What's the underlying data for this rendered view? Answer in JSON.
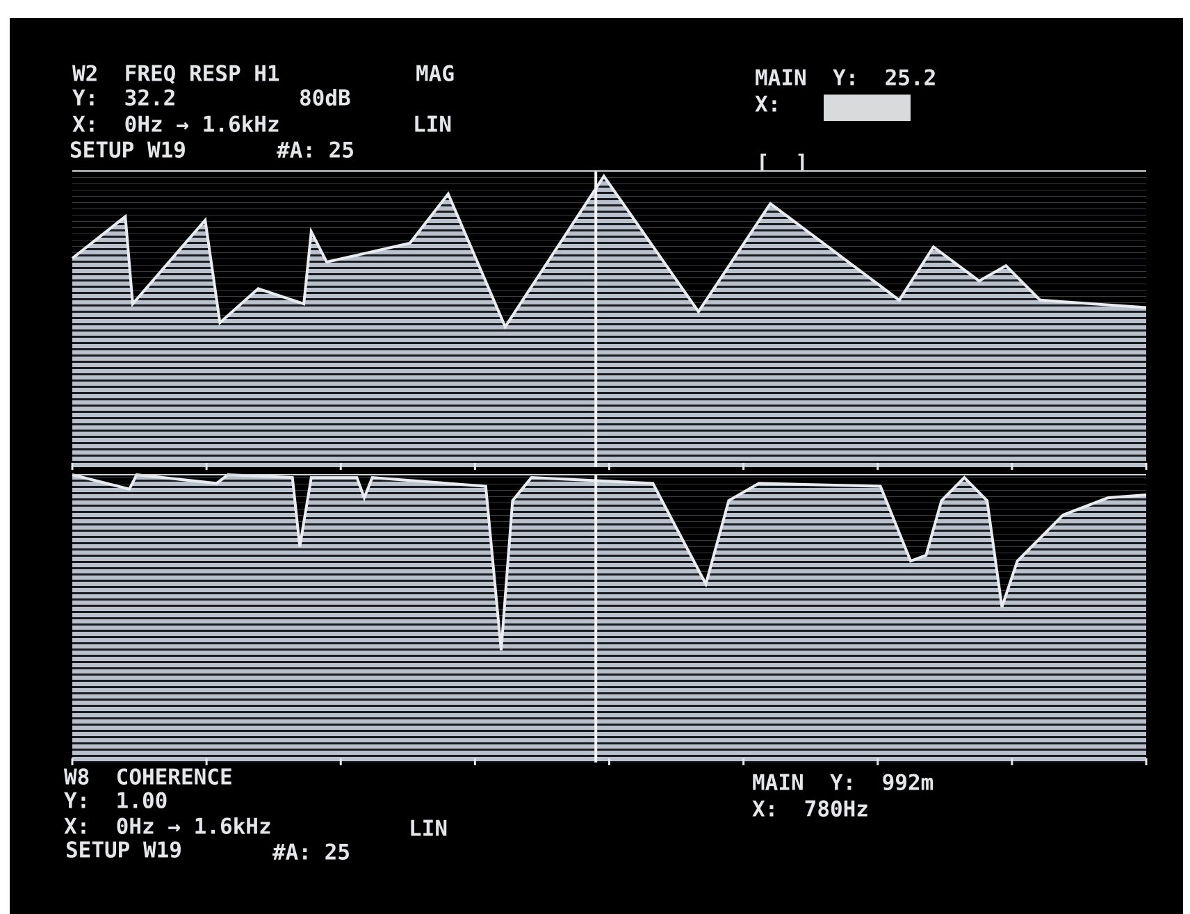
{
  "chart_data": [
    {
      "type": "area",
      "title": "W2  FREQ RESP H1",
      "mode": "MAG",
      "y_readout": "Y:  32.2",
      "y_scale": "80dB",
      "x_readout": "X:  0Hz → 1.6kHz",
      "x_scale": "LIN",
      "setup": "SETUP W19",
      "averages": "#A: 25",
      "marker_y": "MAIN  Y:  25.2",
      "marker_x": "X:",
      "marker_bracket": "[  ]",
      "cursor_x": 780,
      "xlim": [
        0,
        1600
      ],
      "ylim": [
        -47.8,
        32.2
      ],
      "xticks": [
        0,
        200,
        400,
        600,
        800,
        1000,
        1200,
        1400,
        1600
      ],
      "x": [
        0,
        79,
        90,
        198,
        220,
        277,
        345,
        356,
        379,
        503,
        560,
        645,
        792,
        933,
        1040,
        1232,
        1283,
        1351,
        1391,
        1442,
        1600
      ],
      "values": [
        8.6,
        19.9,
        -3.7,
        18.9,
        -8.8,
        0.4,
        -3.7,
        15.8,
        7.6,
        12.7,
        26.0,
        -9.9,
        30.8,
        -5.8,
        23.4,
        -2.7,
        11.7,
        2.5,
        6.6,
        -2.7,
        -4.7
      ],
      "color": "#e8ecf0"
    },
    {
      "type": "area",
      "title": "W8  COHERENCE",
      "y_readout": "Y:  1.00",
      "x_readout": "X:  0Hz → 1.6kHz",
      "x_scale": "LIN",
      "setup": "SETUP W19",
      "averages": "#A: 25",
      "marker_y": "MAIN  Y:  992m",
      "marker_x": "X:  780Hz",
      "cursor_x": 780,
      "xlim": [
        0,
        1600
      ],
      "ylim": [
        0,
        1
      ],
      "xticks": [
        0,
        200,
        400,
        600,
        800,
        1000,
        1200,
        1400,
        1600
      ],
      "x": [
        0,
        85,
        96,
        215,
        232,
        328,
        339,
        356,
        424,
        435,
        447,
        616,
        639,
        656,
        684,
        865,
        944,
        978,
        1023,
        1204,
        1249,
        1272,
        1295,
        1329,
        1363,
        1385,
        1408,
        1476,
        1543,
        1600
      ],
      "values": [
        1.0,
        0.95,
        1.0,
        0.97,
        1.0,
        0.99,
        0.75,
        0.99,
        0.99,
        0.92,
        0.99,
        0.96,
        0.39,
        0.91,
        0.99,
        0.97,
        0.62,
        0.91,
        0.97,
        0.96,
        0.7,
        0.72,
        0.91,
        0.99,
        0.91,
        0.54,
        0.7,
        0.86,
        0.92,
        0.93
      ],
      "color": "#e8ecf0"
    }
  ]
}
